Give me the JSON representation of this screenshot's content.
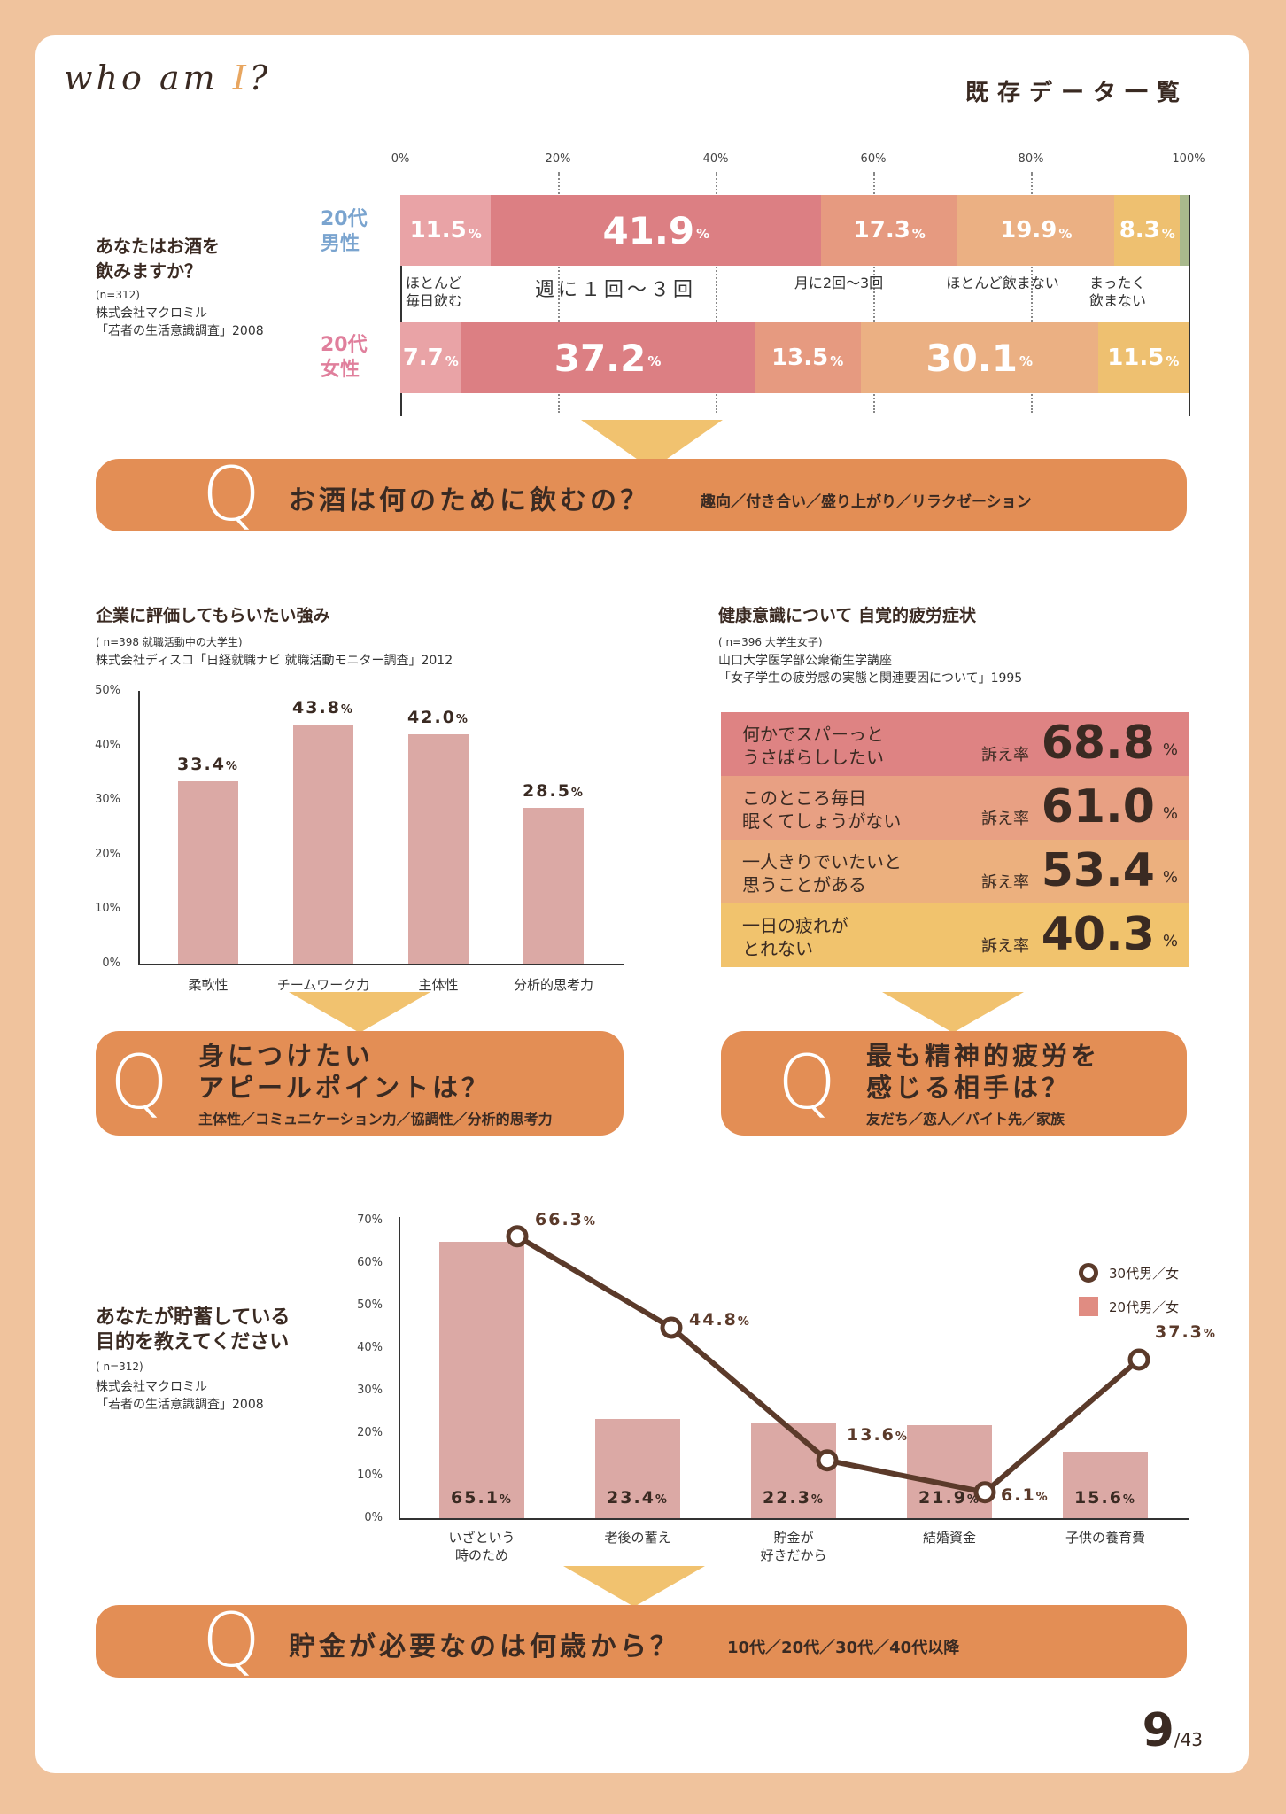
{
  "header": {
    "logo_text": "who am",
    "logo_i": "I",
    "logo_q": "?",
    "title": "既存データ一覧"
  },
  "alcohol": {
    "question": "あなたはお酒を\n飲みますか？",
    "n": "(n=312)",
    "source": "株式会社マクロミル\n「若者の生活意識調査」2008",
    "axis_ticks": [
      "0%",
      "20%",
      "40%",
      "60%",
      "80%",
      "100%"
    ],
    "rows": [
      {
        "label": "20代\n男性",
        "color": "#7aa4cf"
      },
      {
        "label": "20代\n女性",
        "color": "#e07f9c"
      }
    ],
    "categories": [
      "ほとんど\n毎日飲む",
      "週に１回〜３回",
      "月に2回〜3回",
      "ほとんど飲まない",
      "まったく\n飲まない"
    ],
    "colors": [
      "#e9a3a6",
      "#dc7f83",
      "#e69a80",
      "#ebb083",
      "#eec070",
      "#a9b98c"
    ],
    "male": [
      {
        "v": 11.5,
        "t": "11.5"
      },
      {
        "v": 41.9,
        "t": "41.9"
      },
      {
        "v": 17.3,
        "t": "17.3"
      },
      {
        "v": 19.9,
        "t": "19.9"
      },
      {
        "v": 8.3,
        "t": "8.3"
      },
      {
        "v": 1.1,
        "t": ""
      }
    ],
    "female": [
      {
        "v": 7.7,
        "t": "7.7"
      },
      {
        "v": 37.2,
        "t": "37.2"
      },
      {
        "v": 13.5,
        "t": "13.5"
      },
      {
        "v": 30.1,
        "t": "30.1"
      },
      {
        "v": 11.5,
        "t": "11.5"
      }
    ],
    "unit": "%"
  },
  "q1": {
    "q": "Q",
    "title": "お酒は何のために飲むの？",
    "options": "趣向／付き合い／盛り上がり／リラクゼーション"
  },
  "strength": {
    "title": "企業に評価してもらいたい強み",
    "n": "( n=398 就職活動中の大学生)",
    "source": "株式会社ディスコ「日経就職ナビ 就職活動モニター調査」2012",
    "yticks": [
      "50%",
      "40%",
      "30%",
      "20%",
      "10%",
      "0%"
    ],
    "chart_data": {
      "type": "bar",
      "categories": [
        "柔軟性",
        "チームワーク力",
        "主体性",
        "分析的思考力"
      ],
      "values": [
        33.4,
        43.8,
        42.0,
        28.5
      ],
      "labels": [
        "33.4",
        "43.8",
        "42.0",
        "28.5"
      ],
      "ylim": [
        0,
        50
      ]
    },
    "unit": "%"
  },
  "q2": {
    "q": "Q",
    "title": "身につけたい\nアピールポイントは？",
    "options": "主体性／コミュニケーション力／協調性／分析的思考力"
  },
  "health": {
    "title": "健康意識について 自覚的疲労症状",
    "n": "( n=396 大学生女子)",
    "source": "山口大学医学部公衆衛生学講座\n「女子学生の疲労感の実態と関連要因について」1995",
    "rate_label": "訴え率",
    "unit": "%",
    "rows": [
      {
        "text": "何かでスパーっと\nうさばらししたい",
        "value": "68.8",
        "color": "#de8383"
      },
      {
        "text": "このところ毎日\n眠くてしょうがない",
        "value": "61.0",
        "color": "#e8a083"
      },
      {
        "text": "一人きりでいたいと\n思うことがある",
        "value": "53.4",
        "color": "#ecb07e"
      },
      {
        "text": "一日の疲れが\nとれない",
        "value": "40.3",
        "color": "#f1c36d"
      }
    ]
  },
  "q3": {
    "q": "Q",
    "title": "最も精神的疲労を\n感じる相手は？",
    "options": "友だち／恋人／バイト先／家族"
  },
  "savings": {
    "title": "あなたが貯蓄している\n目的を教えてください",
    "n": "( n=312)",
    "source": "株式会社マクロミル\n「若者の生活意識調査」2008",
    "yticks": [
      "70%",
      "60%",
      "50%",
      "40%",
      "30%",
      "20%",
      "10%",
      "0%"
    ],
    "legend": [
      {
        "name": "30代男／女"
      },
      {
        "name": "20代男／女"
      }
    ],
    "chart_data": {
      "type": "bar",
      "categories": [
        "いざという\n時のため",
        "老後の蓄え",
        "貯金が\n好きだから",
        "結婚資金",
        "子供の養育費"
      ],
      "series": [
        {
          "name": "20代男／女",
          "values": [
            65.1,
            23.4,
            22.3,
            21.9,
            15.6
          ],
          "labels": [
            "65.1",
            "23.4",
            "22.3",
            "21.9",
            "15.6"
          ]
        },
        {
          "name": "30代男／女",
          "values": [
            66.3,
            44.8,
            13.6,
            6.1,
            37.3
          ],
          "labels": [
            "66.3",
            "44.8",
            "13.6",
            "6.1",
            "37.3"
          ]
        }
      ],
      "ylim": [
        0,
        70
      ]
    },
    "unit": "%"
  },
  "q4": {
    "q": "Q",
    "title": "貯金が必要なのは何歳から？",
    "options": "10代／20代／30代／40代以降"
  },
  "page": {
    "num": "9",
    "total": "/43"
  }
}
